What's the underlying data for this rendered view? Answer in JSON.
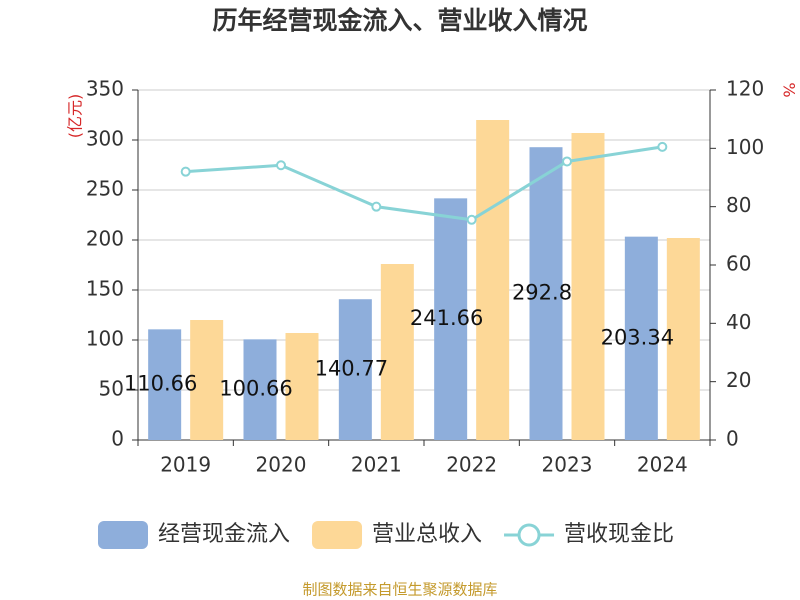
{
  "chart_data": {
    "type": "bar-line",
    "title": "历年经营现金流入、营业收入情况",
    "y_label": "(亿元)",
    "y2_label": "%",
    "categories": [
      "2019",
      "2020",
      "2021",
      "2022",
      "2023",
      "2024"
    ],
    "series": [
      {
        "name": "经营现金流入",
        "type": "bar",
        "color": "#8eaedb",
        "values": [
          110.66,
          100.66,
          140.77,
          241.66,
          292.8,
          203.34
        ],
        "show_labels": true
      },
      {
        "name": "营业总收入",
        "type": "bar",
        "color": "#fdd897",
        "values": [
          120,
          107,
          176,
          320,
          307,
          202
        ]
      },
      {
        "name": "营收现金比",
        "type": "line",
        "axis": "y2",
        "color": "#88d3d6",
        "values": [
          92,
          94.2,
          80,
          75.5,
          95.5,
          100.5
        ]
      }
    ],
    "ylim": [
      0,
      350
    ],
    "yticks": [
      0,
      50,
      100,
      150,
      200,
      250,
      300,
      350
    ],
    "y2lim": [
      0,
      120
    ],
    "y2ticks": [
      0,
      20,
      40,
      60,
      80,
      100,
      120
    ],
    "grid": true,
    "source": "制图数据来自恒生聚源数据库"
  }
}
